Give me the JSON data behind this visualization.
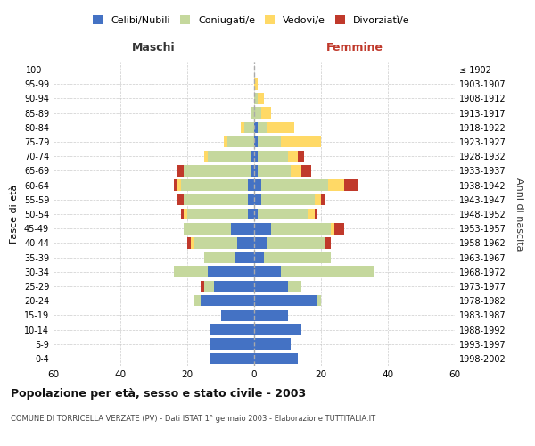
{
  "age_groups": [
    "0-4",
    "5-9",
    "10-14",
    "15-19",
    "20-24",
    "25-29",
    "30-34",
    "35-39",
    "40-44",
    "45-49",
    "50-54",
    "55-59",
    "60-64",
    "65-69",
    "70-74",
    "75-79",
    "80-84",
    "85-89",
    "90-94",
    "95-99",
    "100+"
  ],
  "birth_years": [
    "1998-2002",
    "1993-1997",
    "1988-1992",
    "1983-1987",
    "1978-1982",
    "1973-1977",
    "1968-1972",
    "1963-1967",
    "1958-1962",
    "1953-1957",
    "1948-1952",
    "1943-1947",
    "1938-1942",
    "1933-1937",
    "1928-1932",
    "1923-1927",
    "1918-1922",
    "1913-1917",
    "1908-1912",
    "1903-1907",
    "≤ 1902"
  ],
  "male": {
    "celibi": [
      13,
      13,
      13,
      10,
      16,
      12,
      14,
      6,
      5,
      7,
      2,
      2,
      2,
      1,
      1,
      0,
      0,
      0,
      0,
      0,
      0
    ],
    "coniugati": [
      0,
      0,
      0,
      0,
      2,
      3,
      10,
      9,
      13,
      14,
      18,
      19,
      20,
      20,
      13,
      8,
      3,
      1,
      0,
      0,
      0
    ],
    "vedovi": [
      0,
      0,
      0,
      0,
      0,
      0,
      0,
      0,
      1,
      0,
      1,
      0,
      1,
      0,
      1,
      1,
      1,
      0,
      0,
      0,
      0
    ],
    "divorziati": [
      0,
      0,
      0,
      0,
      0,
      1,
      0,
      0,
      1,
      0,
      1,
      2,
      1,
      2,
      0,
      0,
      0,
      0,
      0,
      0,
      0
    ]
  },
  "female": {
    "nubili": [
      13,
      11,
      14,
      10,
      19,
      10,
      8,
      3,
      4,
      5,
      1,
      2,
      2,
      1,
      1,
      1,
      1,
      0,
      0,
      0,
      0
    ],
    "coniugate": [
      0,
      0,
      0,
      0,
      1,
      4,
      28,
      20,
      17,
      18,
      15,
      16,
      20,
      10,
      9,
      7,
      3,
      2,
      1,
      0,
      0
    ],
    "vedove": [
      0,
      0,
      0,
      0,
      0,
      0,
      0,
      0,
      0,
      1,
      2,
      2,
      5,
      3,
      3,
      12,
      8,
      3,
      2,
      1,
      0
    ],
    "divorziate": [
      0,
      0,
      0,
      0,
      0,
      0,
      0,
      0,
      2,
      3,
      1,
      1,
      4,
      3,
      2,
      0,
      0,
      0,
      0,
      0,
      0
    ]
  },
  "colors": {
    "celibi_nubili": "#4472c4",
    "coniugati": "#c5d89d",
    "vedovi": "#ffd966",
    "divorziati": "#c0392b"
  },
  "xlim": 60,
  "title": "Popolazione per età, sesso e stato civile - 2003",
  "subtitle": "COMUNE DI TORRICELLA VERZATE (PV) - Dati ISTAT 1° gennaio 2003 - Elaborazione TUTTITALIA.IT",
  "ylabel_left": "Fasce di età",
  "ylabel_right": "Anni di nascita",
  "xlabel_left": "Maschi",
  "xlabel_right": "Femmine"
}
